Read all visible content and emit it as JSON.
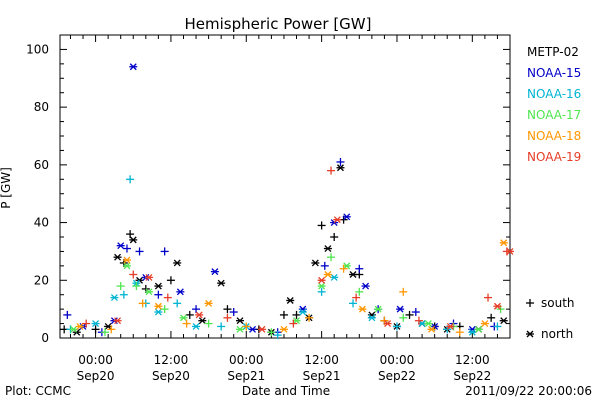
{
  "chart_data": {
    "type": "scatter",
    "title": "Hemispheric Power [GW]",
    "ylabel": "P [GW]",
    "xlabel": "Date and Time",
    "ylim": [
      0,
      105
    ],
    "xlim": [
      "2011-09-19 18:20",
      "2011-09-22 18:00"
    ],
    "y_ticks": [
      0,
      20,
      40,
      60,
      80,
      100
    ],
    "x_ticks": [
      {
        "time": "00:00",
        "date": "Sep20"
      },
      {
        "time": "12:00",
        "date": "Sep20"
      },
      {
        "time": "00:00",
        "date": "Sep21"
      },
      {
        "time": "12:00",
        "date": "Sep21"
      },
      {
        "time": "00:00",
        "date": "Sep22"
      },
      {
        "time": "12:00",
        "date": "Sep22"
      }
    ],
    "markers": {
      "south": "+",
      "north": "*"
    },
    "legend_markers": [
      {
        "symbol": "+",
        "label": "south"
      },
      {
        "symbol": "*",
        "label": "north"
      }
    ],
    "series": [
      {
        "name": "METP-02",
        "color": "#000000",
        "points": [
          [
            "2011-09-19 19:00",
            3,
            "+"
          ],
          [
            "2011-09-19 21:00",
            2,
            "*"
          ],
          [
            "2011-09-20 00:00",
            3,
            "+"
          ],
          [
            "2011-09-20 02:00",
            4,
            "*"
          ],
          [
            "2011-09-20 03:30",
            28,
            "*"
          ],
          [
            "2011-09-20 04:30",
            26,
            "+"
          ],
          [
            "2011-09-20 05:30",
            36,
            "+"
          ],
          [
            "2011-09-20 06:00",
            34,
            "*"
          ],
          [
            "2011-09-20 07:00",
            20,
            "*"
          ],
          [
            "2011-09-20 08:00",
            17,
            "+"
          ],
          [
            "2011-09-20 10:00",
            18,
            "*"
          ],
          [
            "2011-09-20 12:00",
            20,
            "+"
          ],
          [
            "2011-09-20 13:00",
            26,
            "*"
          ],
          [
            "2011-09-20 15:00",
            8,
            "+"
          ],
          [
            "2011-09-20 17:00",
            6,
            "*"
          ],
          [
            "2011-09-20 20:00",
            19,
            "*"
          ],
          [
            "2011-09-20 21:00",
            10,
            "+"
          ],
          [
            "2011-09-20 23:00",
            6,
            "*"
          ],
          [
            "2011-09-21 02:00",
            3,
            "+"
          ],
          [
            "2011-09-21 04:00",
            2,
            "*"
          ],
          [
            "2011-09-21 06:00",
            8,
            "+"
          ],
          [
            "2011-09-21 07:00",
            13,
            "*"
          ],
          [
            "2011-09-21 08:00",
            8,
            "+"
          ],
          [
            "2011-09-21 10:00",
            7,
            "*"
          ],
          [
            "2011-09-21 11:00",
            26,
            "*"
          ],
          [
            "2011-09-21 12:00",
            39,
            "+"
          ],
          [
            "2011-09-21 13:00",
            31,
            "*"
          ],
          [
            "2011-09-21 14:00",
            35,
            "+"
          ],
          [
            "2011-09-21 15:00",
            59,
            "*"
          ],
          [
            "2011-09-21 15:30",
            41,
            "+"
          ],
          [
            "2011-09-21 17:00",
            22,
            "*"
          ],
          [
            "2011-09-21 18:00",
            22,
            "+"
          ],
          [
            "2011-09-21 20:00",
            8,
            "*"
          ],
          [
            "2011-09-21 22:00",
            6,
            "+"
          ],
          [
            "2011-09-22 00:00",
            4,
            "*"
          ],
          [
            "2011-09-22 02:00",
            8,
            "+"
          ],
          [
            "2011-09-22 04:00",
            5,
            "*"
          ],
          [
            "2011-09-22 06:00",
            4,
            "+"
          ],
          [
            "2011-09-22 08:00",
            3,
            "*"
          ],
          [
            "2011-09-22 10:00",
            4,
            "+"
          ],
          [
            "2011-09-22 13:00",
            3,
            "*"
          ],
          [
            "2011-09-22 15:00",
            7,
            "+"
          ],
          [
            "2011-09-22 17:00",
            6,
            "*"
          ]
        ]
      },
      {
        "name": "NOAA-15",
        "color": "#0000c8",
        "points": [
          [
            "2011-09-19 19:30",
            8,
            "+"
          ],
          [
            "2011-09-19 22:00",
            4,
            "*"
          ],
          [
            "2011-09-20 01:00",
            2,
            "+"
          ],
          [
            "2011-09-20 03:00",
            6,
            "*"
          ],
          [
            "2011-09-20 04:00",
            32,
            "*"
          ],
          [
            "2011-09-20 05:00",
            31,
            "+"
          ],
          [
            "2011-09-20 06:00",
            94,
            "*"
          ],
          [
            "2011-09-20 07:00",
            30,
            "+"
          ],
          [
            "2011-09-20 08:00",
            21,
            "*"
          ],
          [
            "2011-09-20 10:00",
            15,
            "+"
          ],
          [
            "2011-09-20 11:00",
            30,
            "+"
          ],
          [
            "2011-09-20 13:30",
            16,
            "*"
          ],
          [
            "2011-09-20 16:00",
            10,
            "+"
          ],
          [
            "2011-09-20 19:00",
            23,
            "*"
          ],
          [
            "2011-09-20 22:00",
            9,
            "+"
          ],
          [
            "2011-09-21 01:00",
            3,
            "*"
          ],
          [
            "2011-09-21 05:00",
            2,
            "+"
          ],
          [
            "2011-09-21 09:00",
            10,
            "*"
          ],
          [
            "2011-09-21 12:30",
            25,
            "+"
          ],
          [
            "2011-09-21 14:00",
            40,
            "*"
          ],
          [
            "2011-09-21 15:00",
            61,
            "+"
          ],
          [
            "2011-09-21 16:00",
            42,
            "*"
          ],
          [
            "2011-09-21 18:00",
            24,
            "+"
          ],
          [
            "2011-09-21 19:00",
            18,
            "*"
          ],
          [
            "2011-09-21 21:00",
            10,
            "+"
          ],
          [
            "2011-09-22 00:30",
            10,
            "*"
          ],
          [
            "2011-09-22 03:00",
            9,
            "+"
          ],
          [
            "2011-09-22 06:00",
            4,
            "*"
          ],
          [
            "2011-09-22 09:00",
            5,
            "+"
          ],
          [
            "2011-09-22 12:00",
            3,
            "*"
          ],
          [
            "2011-09-22 15:30",
            4,
            "+"
          ]
        ]
      },
      {
        "name": "NOAA-16",
        "color": "#00b4d2",
        "points": [
          [
            "2011-09-19 20:00",
            3,
            "+"
          ],
          [
            "2011-09-20 00:00",
            5,
            "*"
          ],
          [
            "2011-09-20 03:00",
            14,
            "*"
          ],
          [
            "2011-09-20 04:30",
            15,
            "+"
          ],
          [
            "2011-09-20 05:30",
            55,
            "+"
          ],
          [
            "2011-09-20 06:30",
            19,
            "*"
          ],
          [
            "2011-09-20 08:00",
            12,
            "+"
          ],
          [
            "2011-09-20 10:00",
            9,
            "*"
          ],
          [
            "2011-09-20 13:00",
            12,
            "+"
          ],
          [
            "2011-09-20 16:00",
            4,
            "*"
          ],
          [
            "2011-09-20 20:00",
            4,
            "+"
          ],
          [
            "2011-09-21 00:00",
            4,
            "*"
          ],
          [
            "2011-09-21 05:00",
            1,
            "+"
          ],
          [
            "2011-09-21 09:00",
            9,
            "*"
          ],
          [
            "2011-09-21 12:00",
            16,
            "+"
          ],
          [
            "2011-09-21 14:00",
            21,
            "*"
          ],
          [
            "2011-09-21 17:00",
            12,
            "+"
          ],
          [
            "2011-09-21 20:00",
            7,
            "*"
          ],
          [
            "2011-09-22 00:00",
            4,
            "+"
          ],
          [
            "2011-09-22 04:00",
            5,
            "*"
          ],
          [
            "2011-09-22 08:00",
            3,
            "+"
          ],
          [
            "2011-09-22 12:00",
            2,
            "*"
          ],
          [
            "2011-09-22 16:00",
            4,
            "+"
          ]
        ]
      },
      {
        "name": "NOAA-17",
        "color": "#50e650",
        "points": [
          [
            "2011-09-19 20:30",
            3,
            "*"
          ],
          [
            "2011-09-20 01:30",
            2,
            "+"
          ],
          [
            "2011-09-20 04:00",
            18,
            "+"
          ],
          [
            "2011-09-20 05:00",
            25,
            "*"
          ],
          [
            "2011-09-20 06:30",
            18,
            "+"
          ],
          [
            "2011-09-20 08:30",
            16,
            "*"
          ],
          [
            "2011-09-20 11:00",
            10,
            "+"
          ],
          [
            "2011-09-20 14:00",
            7,
            "*"
          ],
          [
            "2011-09-20 18:00",
            5,
            "+"
          ],
          [
            "2011-09-20 23:00",
            3,
            "*"
          ],
          [
            "2011-09-21 04:00",
            2,
            "+"
          ],
          [
            "2011-09-21 08:00",
            6,
            "*"
          ],
          [
            "2011-09-21 12:00",
            18,
            "*"
          ],
          [
            "2011-09-21 13:30",
            28,
            "+"
          ],
          [
            "2011-09-21 16:00",
            25,
            "*"
          ],
          [
            "2011-09-21 18:00",
            16,
            "+"
          ],
          [
            "2011-09-21 21:00",
            10,
            "*"
          ],
          [
            "2011-09-22 01:00",
            7,
            "+"
          ],
          [
            "2011-09-22 05:00",
            5,
            "*"
          ],
          [
            "2011-09-22 09:00",
            4,
            "+"
          ],
          [
            "2011-09-22 13:00",
            3,
            "*"
          ],
          [
            "2011-09-22 16:30",
            10,
            "+"
          ]
        ]
      },
      {
        "name": "NOAA-18",
        "color": "#ff9600",
        "points": [
          [
            "2011-09-19 21:30",
            4,
            "*"
          ],
          [
            "2011-09-20 02:30",
            3,
            "+"
          ],
          [
            "2011-09-20 05:00",
            27,
            "*"
          ],
          [
            "2011-09-20 07:30",
            12,
            "+"
          ],
          [
            "2011-09-20 10:00",
            11,
            "*"
          ],
          [
            "2011-09-20 14:30",
            5,
            "+"
          ],
          [
            "2011-09-20 18:00",
            12,
            "*"
          ],
          [
            "2011-09-21 00:00",
            4,
            "+"
          ],
          [
            "2011-09-21 06:00",
            3,
            "*"
          ],
          [
            "2011-09-21 10:00",
            7,
            "+"
          ],
          [
            "2011-09-21 13:00",
            22,
            "*"
          ],
          [
            "2011-09-21 15:30",
            24,
            "+"
          ],
          [
            "2011-09-21 18:30",
            10,
            "*"
          ],
          [
            "2011-09-21 22:00",
            6,
            "+"
          ],
          [
            "2011-09-22 01:00",
            16,
            "+"
          ],
          [
            "2011-09-22 05:30",
            3,
            "*"
          ],
          [
            "2011-09-22 10:00",
            2,
            "+"
          ],
          [
            "2011-09-22 14:00",
            5,
            "*"
          ],
          [
            "2011-09-22 17:00",
            33,
            "*"
          ]
        ]
      },
      {
        "name": "NOAA-19",
        "color": "#e63c28",
        "points": [
          [
            "2011-09-19 22:30",
            5,
            "+"
          ],
          [
            "2011-09-20 03:30",
            6,
            "*"
          ],
          [
            "2011-09-20 06:00",
            22,
            "+"
          ],
          [
            "2011-09-20 08:30",
            21,
            "*"
          ],
          [
            "2011-09-20 11:30",
            14,
            "+"
          ],
          [
            "2011-09-20 16:30",
            8,
            "*"
          ],
          [
            "2011-09-20 21:00",
            7,
            "+"
          ],
          [
            "2011-09-21 02:30",
            3,
            "*"
          ],
          [
            "2011-09-21 07:30",
            5,
            "+"
          ],
          [
            "2011-09-21 12:00",
            20,
            "*"
          ],
          [
            "2011-09-21 13:30",
            58,
            "+"
          ],
          [
            "2011-09-21 14:30",
            41,
            "*"
          ],
          [
            "2011-09-21 17:30",
            14,
            "+"
          ],
          [
            "2011-09-21 22:30",
            5,
            "*"
          ],
          [
            "2011-09-22 03:30",
            6,
            "+"
          ],
          [
            "2011-09-22 08:30",
            4,
            "*"
          ],
          [
            "2011-09-22 14:30",
            14,
            "+"
          ],
          [
            "2011-09-22 16:00",
            11,
            "*"
          ],
          [
            "2011-09-22 17:30",
            30,
            "+"
          ],
          [
            "2011-09-22 18:00",
            30,
            "*"
          ]
        ]
      }
    ]
  },
  "footer": {
    "plot_credit": "Plot: CCMC",
    "timestamp": "2011/09/22 20:00:06"
  }
}
